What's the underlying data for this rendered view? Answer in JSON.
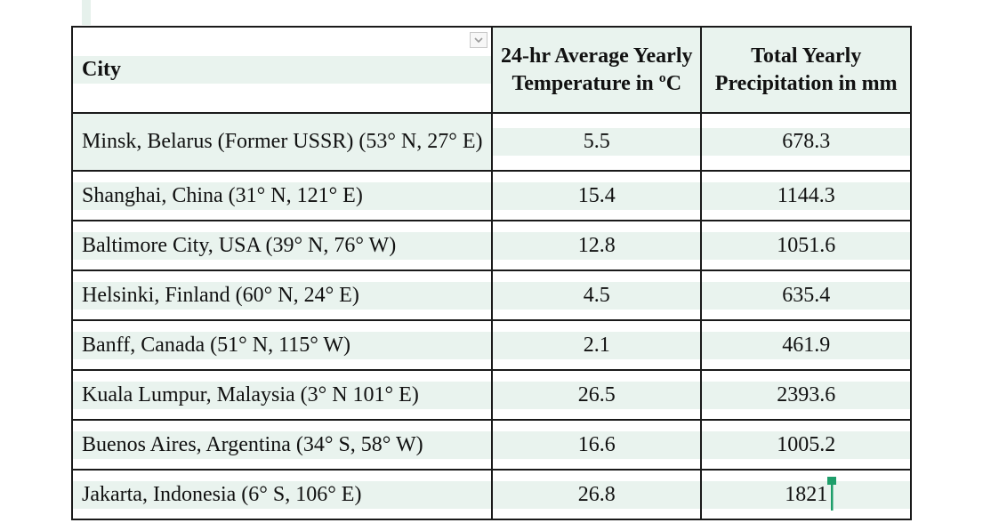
{
  "table": {
    "headers": {
      "city": "City",
      "temperature": "24-hr Average Yearly Temperature in ºC",
      "precipitation": "Total Yearly Precipitation in mm"
    },
    "rows": [
      {
        "city": "Minsk, Belarus (Former USSR) (53° N, 27° E)",
        "temperature": "5.5",
        "precipitation": "678.3"
      },
      {
        "city": "Shanghai, China (31° N, 121° E)",
        "temperature": "15.4",
        "precipitation": "1144.3"
      },
      {
        "city": "Baltimore City, USA (39° N, 76° W)",
        "temperature": "12.8",
        "precipitation": "1051.6"
      },
      {
        "city": "Helsinki, Finland (60° N, 24° E)",
        "temperature": "4.5",
        "precipitation": "635.4"
      },
      {
        "city": "Banff, Canada (51° N, 115° W)",
        "temperature": "2.1",
        "precipitation": "461.9"
      },
      {
        "city": "Kuala Lumpur, Malaysia (3° N 101° E)",
        "temperature": "26.5",
        "precipitation": "2393.6"
      },
      {
        "city": "Buenos Aires, Argentina (34° S, 58° W)",
        "temperature": "16.6",
        "precipitation": "1005.2"
      },
      {
        "city": "Jakarta, Indonesia (6° S, 106° E)",
        "temperature": "26.8",
        "precipitation": "1821"
      }
    ]
  },
  "icons": {
    "filter_dropdown": "chevron-down-icon",
    "text_cursor": "text-cursor-icon"
  },
  "colors": {
    "band": "#e9f3ee",
    "cursor": "#1e9e6a",
    "border": "#1a1a1a"
  }
}
